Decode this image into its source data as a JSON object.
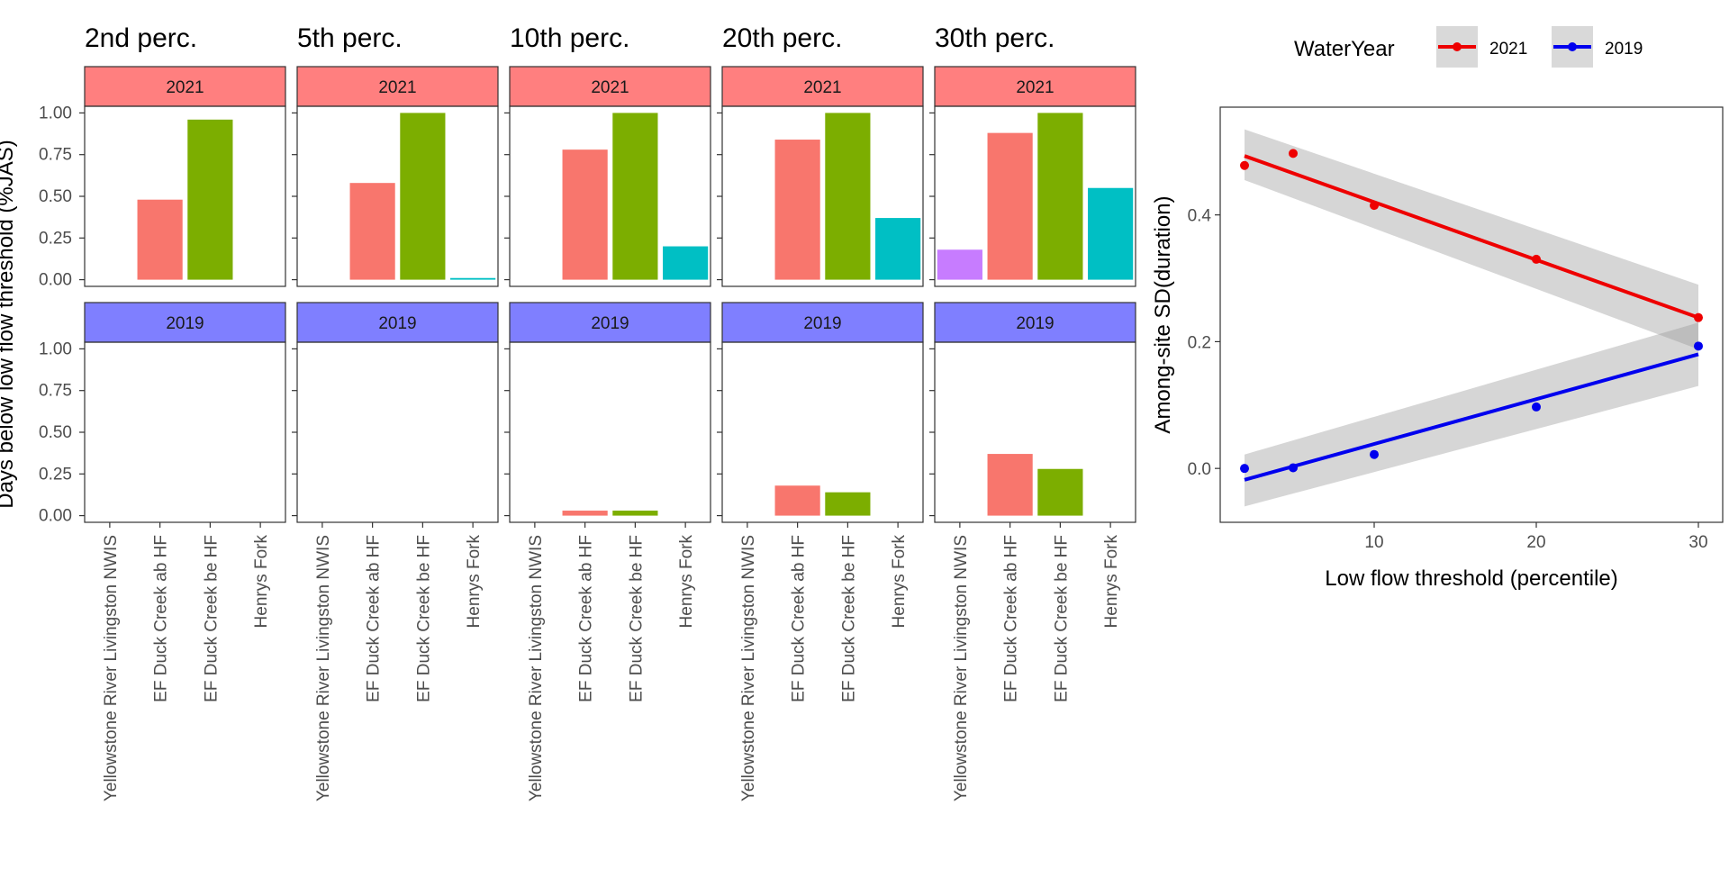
{
  "chart_data": [
    {
      "type": "bar",
      "ylabel": "Days below low flow threshold (%JAS)",
      "ylim": [
        -0.04,
        1.04
      ],
      "yticks": [
        "0.00",
        "0.25",
        "0.50",
        "0.75",
        "1.00"
      ],
      "categories": [
        "Yellowstone River Livingston NWIS",
        "EF Duck Creek ab HF",
        "EF Duck Creek be HF",
        "Henrys Fork"
      ],
      "category_colors": [
        "#C77CFF",
        "#F8766D",
        "#7CAE00",
        "#00BFC4"
      ],
      "rows": [
        {
          "label": "2021",
          "strip_color": "#FF7F7F"
        },
        {
          "label": "2019",
          "strip_color": "#7F7FFF"
        }
      ],
      "panels": [
        {
          "title": "2nd perc.",
          "values_2021": [
            0.0,
            0.48,
            0.96,
            0.0
          ],
          "values_2019": [
            0.0,
            0.0,
            0.0,
            0.0
          ]
        },
        {
          "title": "5th perc.",
          "values_2021": [
            0.0,
            0.58,
            1.0,
            0.01
          ],
          "values_2019": [
            0.0,
            0.0,
            0.0,
            0.0
          ]
        },
        {
          "title": "10th perc.",
          "values_2021": [
            0.0,
            0.78,
            1.0,
            0.2
          ],
          "values_2019": [
            0.0,
            0.03,
            0.03,
            0.0
          ]
        },
        {
          "title": "20th perc.",
          "values_2021": [
            0.0,
            0.84,
            1.0,
            0.37
          ],
          "values_2019": [
            0.0,
            0.18,
            0.14,
            0.0
          ]
        },
        {
          "title": "30th perc.",
          "values_2021": [
            0.18,
            0.88,
            1.0,
            0.55
          ],
          "values_2019": [
            0.0,
            0.37,
            0.28,
            0.0
          ]
        }
      ]
    },
    {
      "type": "scatter",
      "xlabel": "Low flow threshold (percentile)",
      "ylabel": "Among-site SD(duration)",
      "xlim": [
        0.5,
        31.5
      ],
      "ylim": [
        -0.085,
        0.57
      ],
      "xticks": [
        10,
        20,
        30
      ],
      "yticks": [
        "0.0",
        "0.2",
        "0.4"
      ],
      "legend_title": "WaterYear",
      "legend_position": "top",
      "series": [
        {
          "name": "2021",
          "color": "#EE0000",
          "x": [
            2,
            5,
            10,
            20,
            30
          ],
          "y": [
            0.478,
            0.497,
            0.415,
            0.33,
            0.238
          ],
          "fit_y": [
            0.493,
            0.238
          ],
          "ci_lower": [
            0.455,
            0.188
          ],
          "ci_upper": [
            0.535,
            0.29
          ]
        },
        {
          "name": "2019",
          "color": "#0000EE",
          "x": [
            2,
            5,
            10,
            20,
            30
          ],
          "y": [
            0.0,
            0.001,
            0.022,
            0.097,
            0.193
          ],
          "fit_y": [
            -0.018,
            0.18
          ],
          "ci_lower": [
            -0.06,
            0.13
          ],
          "ci_upper": [
            0.022,
            0.23
          ]
        }
      ]
    }
  ]
}
